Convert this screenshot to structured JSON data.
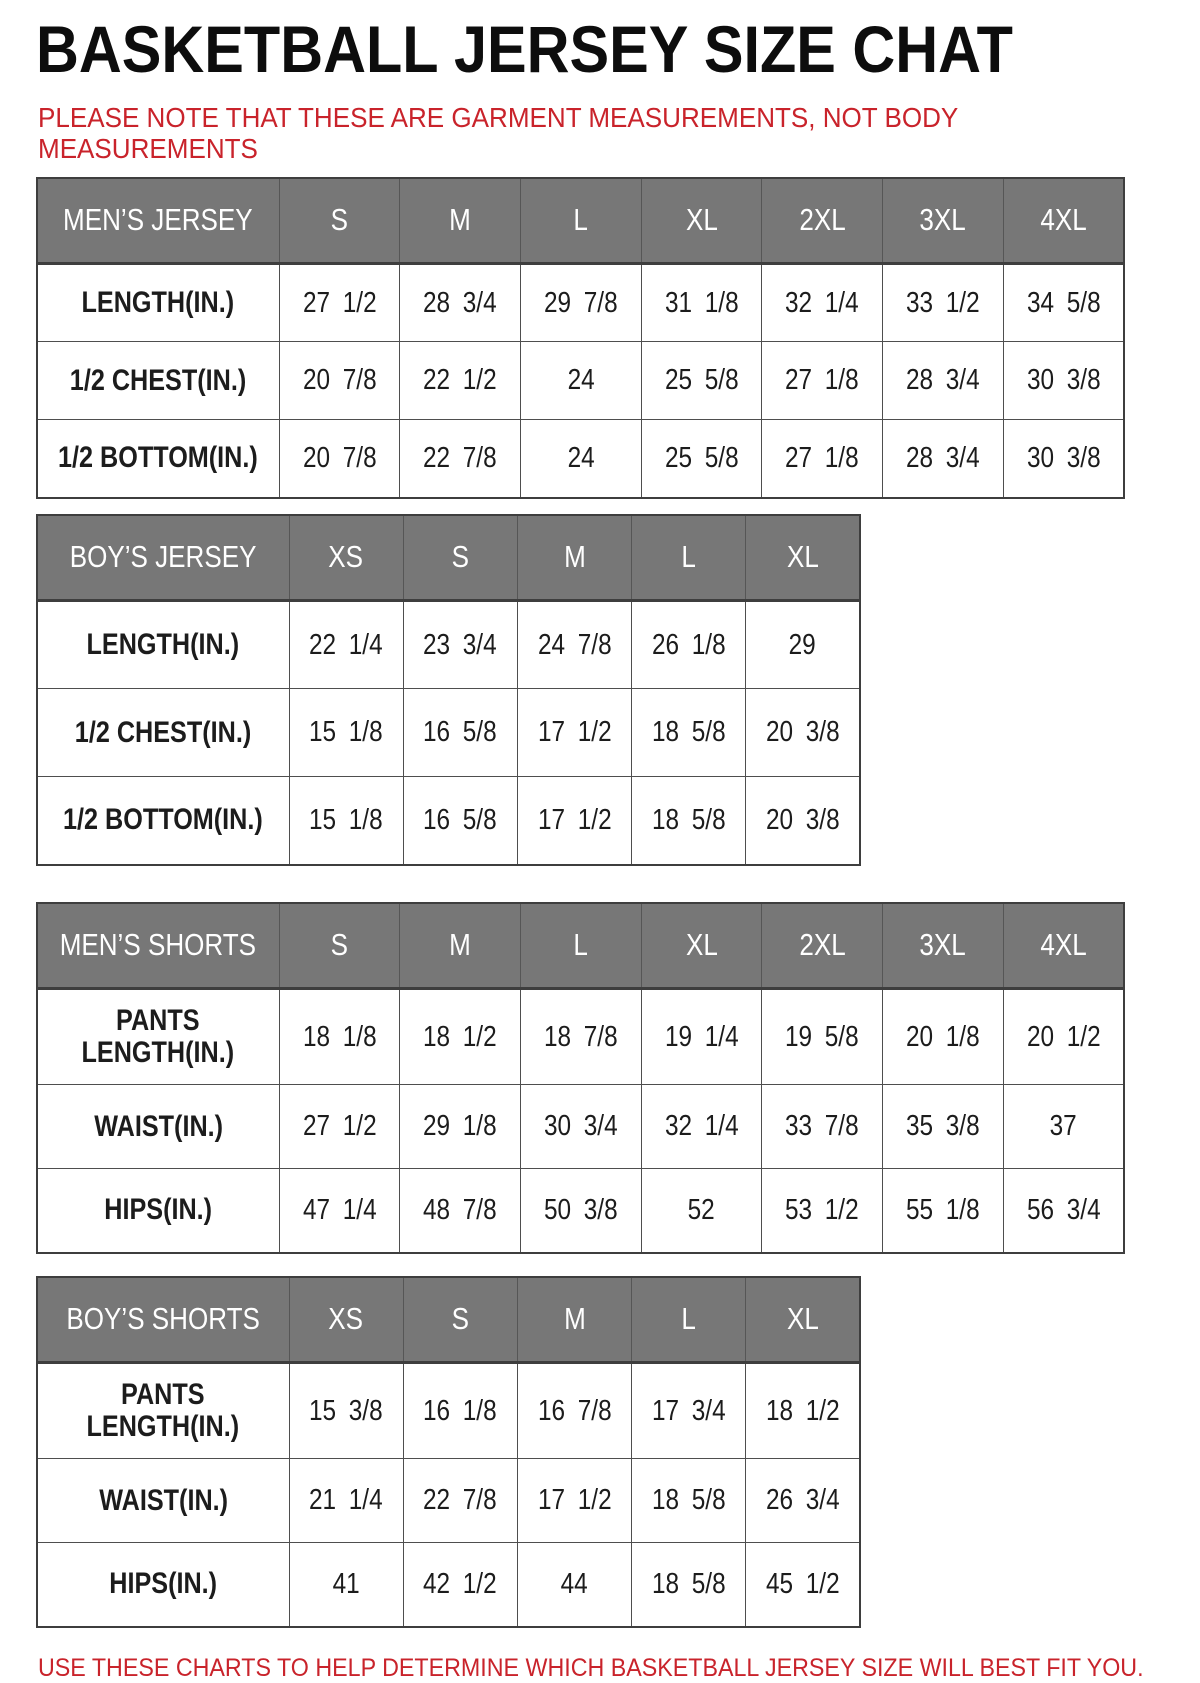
{
  "page": {
    "title": "BASKETBALL JERSEY SIZE CHAT",
    "note_line1": "PLEASE NOTE THAT THESE ARE GARMENT MEASUREMENTS, NOT BODY",
    "note_line2": "MEASUREMENTS",
    "footer": "USE THESE CHARTS TO HELP DETERMINE WHICH BASKETBALL JERSEY SIZE WILL BEST FIT YOU."
  },
  "colors": {
    "header_bg": "#777777",
    "header_text": "#ffffff",
    "accent_red": "#c9232b",
    "border": "#4e4e4e",
    "text": "#1c1c1c"
  },
  "tables": [
    {
      "id": "mens-jersey-table",
      "header": [
        "MEN’S JERSEY",
        "S",
        "M",
        "L",
        "XL",
        "2XL",
        "3XL",
        "4XL"
      ],
      "rows": [
        {
          "label": "LENGTH(IN.)",
          "values": [
            "27 1/2",
            "28 3/4",
            "29 7/8",
            "31 1/8",
            "32 1/4",
            "33 1/2",
            "34 5/8"
          ]
        },
        {
          "label": "1/2 CHEST(IN.)",
          "values": [
            "20 7/8",
            "22 1/2",
            "24",
            "25 5/8",
            "27 1/8",
            "28 3/4",
            "30 3/8"
          ]
        },
        {
          "label": "1/2 BOTTOM(IN.)",
          "values": [
            "20 7/8",
            "22 7/8",
            "24",
            "25 5/8",
            "27 1/8",
            "28 3/4",
            "30 3/8"
          ]
        }
      ]
    },
    {
      "id": "boys-jersey-table",
      "header": [
        "BOY’S JERSEY",
        "XS",
        "S",
        "M",
        "L",
        "XL"
      ],
      "rows": [
        {
          "label": "LENGTH(IN.)",
          "values": [
            "22 1/4",
            "23 3/4",
            "24 7/8",
            "26 1/8",
            "29"
          ]
        },
        {
          "label": "1/2 CHEST(IN.)",
          "values": [
            "15 1/8",
            "16 5/8",
            "17 1/2",
            "18 5/8",
            "20 3/8"
          ]
        },
        {
          "label": "1/2 BOTTOM(IN.)",
          "values": [
            "15 1/8",
            "16 5/8",
            "17 1/2",
            "18 5/8",
            "20 3/8"
          ]
        }
      ]
    },
    {
      "id": "mens-shorts-table",
      "header": [
        "MEN’S SHORTS",
        "S",
        "M",
        "L",
        "XL",
        "2XL",
        "3XL",
        "4XL"
      ],
      "rows": [
        {
          "label": "PANTS\nLENGTH(IN.)",
          "values": [
            "18 1/8",
            "18 1/2",
            "18 7/8",
            "19 1/4",
            "19 5/8",
            "20 1/8",
            "20 1/2"
          ]
        },
        {
          "label": "WAIST(IN.)",
          "values": [
            "27 1/2",
            "29 1/8",
            "30 3/4",
            "32 1/4",
            "33 7/8",
            "35 3/8",
            "37"
          ]
        },
        {
          "label": "HIPS(IN.)",
          "values": [
            "47 1/4",
            "48 7/8",
            "50 3/8",
            "52",
            "53 1/2",
            "55 1/8",
            "56 3/4"
          ]
        }
      ]
    },
    {
      "id": "boys-shorts-table",
      "header": [
        "BOY’S SHORTS",
        "XS",
        "S",
        "M",
        "L",
        "XL"
      ],
      "rows": [
        {
          "label": "PANTS\nLENGTH(IN.)",
          "values": [
            "15 3/8",
            "16 1/8",
            "16 7/8",
            "17 3/4",
            "18 1/2"
          ]
        },
        {
          "label": "WAIST(IN.)",
          "values": [
            "21 1/4",
            "22 7/8",
            "17 1/2",
            "18 5/8",
            "26 3/4"
          ]
        },
        {
          "label": "HIPS(IN.)",
          "values": [
            "41",
            "42 1/2",
            "44",
            "18 5/8",
            "45 1/2"
          ]
        }
      ]
    }
  ]
}
